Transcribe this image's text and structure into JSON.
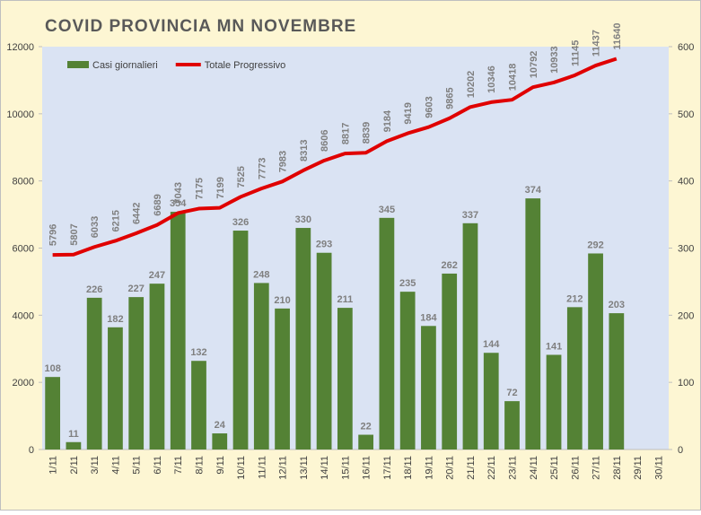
{
  "chart_data": {
    "type": "bar-line",
    "title": "COVID  PROVINCIA MN  NOVEMBRE",
    "categories": [
      "1/11",
      "2/11",
      "3/11",
      "4/11",
      "5/11",
      "6/11",
      "7/11",
      "8/11",
      "9/11",
      "10/11",
      "11/11",
      "12/11",
      "13/11",
      "14/11",
      "15/11",
      "16/11",
      "17/11",
      "18/11",
      "19/11",
      "20/11",
      "21/11",
      "22/11",
      "23/11",
      "24/11",
      "25/11",
      "26/11",
      "27/11",
      "28/11",
      "29/11",
      "30/11"
    ],
    "series": [
      {
        "name": "Casi giornalieri",
        "type": "bar",
        "color": "#548235",
        "axis": "y2",
        "values": [
          108,
          11,
          226,
          182,
          227,
          247,
          354,
          132,
          24,
          326,
          248,
          210,
          330,
          293,
          211,
          22,
          345,
          235,
          184,
          262,
          337,
          144,
          72,
          374,
          141,
          212,
          292,
          203,
          null,
          null
        ]
      },
      {
        "name": "Totale Progressivo",
        "type": "line",
        "color": "#e00000",
        "axis": "y",
        "values": [
          5796,
          5807,
          6033,
          6215,
          6442,
          6689,
          7043,
          7175,
          7199,
          7525,
          7773,
          7983,
          8313,
          8606,
          8817,
          8839,
          9184,
          9419,
          9603,
          9865,
          10202,
          10346,
          10418,
          10792,
          10933,
          11145,
          11437,
          11640,
          null,
          null
        ]
      }
    ],
    "ylim": [
      0,
      12000
    ],
    "yticks": [
      0,
      2000,
      4000,
      6000,
      8000,
      10000,
      12000
    ],
    "y2lim": [
      0,
      600
    ],
    "y2ticks": [
      0,
      100,
      200,
      300,
      400,
      500,
      600
    ],
    "legend": "top-left"
  }
}
